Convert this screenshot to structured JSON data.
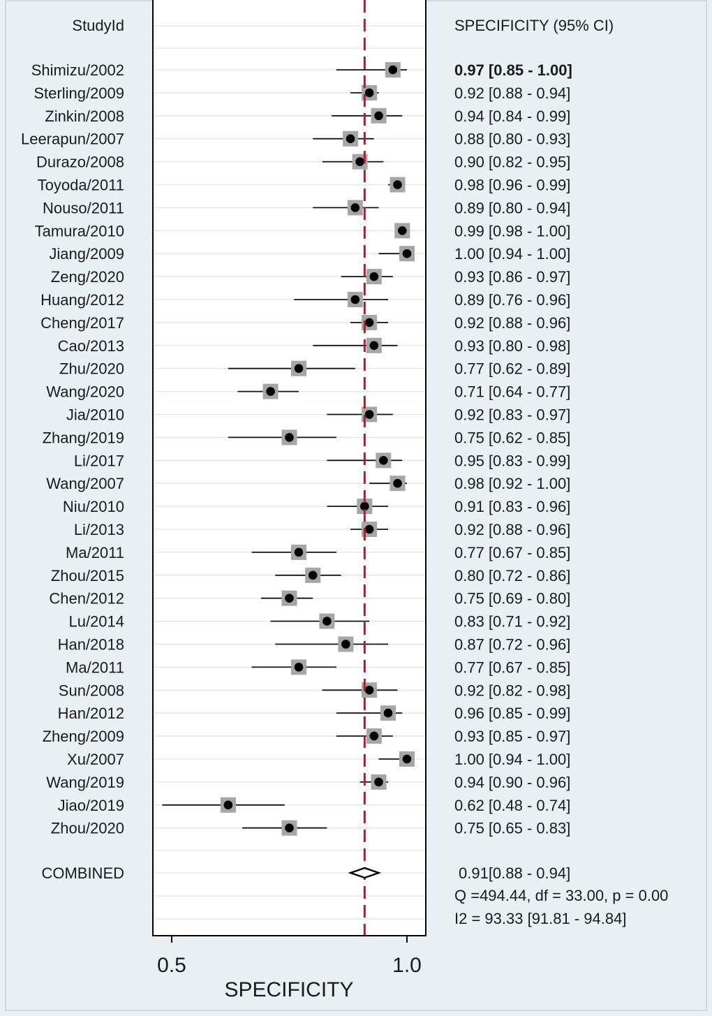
{
  "chart_data": {
    "type": "forest",
    "column_header_left": "StudyId",
    "column_header_right": "SPECIFICITY (95% CI)",
    "xlabel": "SPECIFICITY",
    "x_ticks": [
      "0.5",
      "1.0"
    ],
    "xlim": [
      0.46,
      1.04
    ],
    "pooled_line": 0.91,
    "studies": [
      {
        "name": "Shimizu/2002",
        "est": 0.97,
        "lo": 0.85,
        "hi": 1.0,
        "text": "0.97 [0.85 - 1.00]"
      },
      {
        "name": "Sterling/2009",
        "est": 0.92,
        "lo": 0.88,
        "hi": 0.94,
        "text": "0.92 [0.88 - 0.94]"
      },
      {
        "name": "Zinkin/2008",
        "est": 0.94,
        "lo": 0.84,
        "hi": 0.99,
        "text": "0.94 [0.84 - 0.99]"
      },
      {
        "name": "Leerapun/2007",
        "est": 0.88,
        "lo": 0.8,
        "hi": 0.93,
        "text": "0.88 [0.80 - 0.93]"
      },
      {
        "name": "Durazo/2008",
        "est": 0.9,
        "lo": 0.82,
        "hi": 0.95,
        "text": "0.90 [0.82 - 0.95]"
      },
      {
        "name": "Toyoda/2011",
        "est": 0.98,
        "lo": 0.96,
        "hi": 0.99,
        "text": "0.98 [0.96 - 0.99]"
      },
      {
        "name": "Nouso/2011",
        "est": 0.89,
        "lo": 0.8,
        "hi": 0.94,
        "text": "0.89 [0.80 - 0.94]"
      },
      {
        "name": "Tamura/2010",
        "est": 0.99,
        "lo": 0.98,
        "hi": 1.0,
        "text": "0.99 [0.98 - 1.00]"
      },
      {
        "name": "Jiang/2009",
        "est": 1.0,
        "lo": 0.94,
        "hi": 1.0,
        "text": "1.00 [0.94 - 1.00]"
      },
      {
        "name": "Zeng/2020",
        "est": 0.93,
        "lo": 0.86,
        "hi": 0.97,
        "text": "0.93 [0.86 - 0.97]"
      },
      {
        "name": "Huang/2012",
        "est": 0.89,
        "lo": 0.76,
        "hi": 0.96,
        "text": "0.89 [0.76 - 0.96]"
      },
      {
        "name": "Cheng/2017",
        "est": 0.92,
        "lo": 0.88,
        "hi": 0.96,
        "text": "0.92 [0.88 - 0.96]"
      },
      {
        "name": "Cao/2013",
        "est": 0.93,
        "lo": 0.8,
        "hi": 0.98,
        "text": "0.93 [0.80 - 0.98]"
      },
      {
        "name": "Zhu/2020",
        "est": 0.77,
        "lo": 0.62,
        "hi": 0.89,
        "text": "0.77 [0.62 - 0.89]"
      },
      {
        "name": "Wang/2020",
        "est": 0.71,
        "lo": 0.64,
        "hi": 0.77,
        "text": "0.71 [0.64 - 0.77]"
      },
      {
        "name": "Jia/2010",
        "est": 0.92,
        "lo": 0.83,
        "hi": 0.97,
        "text": "0.92 [0.83 - 0.97]"
      },
      {
        "name": "Zhang/2019",
        "est": 0.75,
        "lo": 0.62,
        "hi": 0.85,
        "text": "0.75 [0.62 - 0.85]"
      },
      {
        "name": "Li/2017",
        "est": 0.95,
        "lo": 0.83,
        "hi": 0.99,
        "text": "0.95 [0.83 - 0.99]"
      },
      {
        "name": "Wang/2007",
        "est": 0.98,
        "lo": 0.92,
        "hi": 1.0,
        "text": "0.98 [0.92 - 1.00]"
      },
      {
        "name": "Niu/2010",
        "est": 0.91,
        "lo": 0.83,
        "hi": 0.96,
        "text": "0.91 [0.83 - 0.96]"
      },
      {
        "name": "Li/2013",
        "est": 0.92,
        "lo": 0.88,
        "hi": 0.96,
        "text": "0.92 [0.88 - 0.96]"
      },
      {
        "name": "Ma/2011",
        "est": 0.77,
        "lo": 0.67,
        "hi": 0.85,
        "text": "0.77 [0.67 - 0.85]"
      },
      {
        "name": "Zhou/2015",
        "est": 0.8,
        "lo": 0.72,
        "hi": 0.86,
        "text": "0.80 [0.72 - 0.86]"
      },
      {
        "name": "Chen/2012",
        "est": 0.75,
        "lo": 0.69,
        "hi": 0.8,
        "text": "0.75 [0.69 - 0.80]"
      },
      {
        "name": "Lu/2014",
        "est": 0.83,
        "lo": 0.71,
        "hi": 0.92,
        "text": "0.83 [0.71 - 0.92]"
      },
      {
        "name": "Han/2018",
        "est": 0.87,
        "lo": 0.72,
        "hi": 0.96,
        "text": "0.87 [0.72 - 0.96]"
      },
      {
        "name": "Ma/2011",
        "est": 0.77,
        "lo": 0.67,
        "hi": 0.85,
        "text": "0.77 [0.67 - 0.85]"
      },
      {
        "name": "Sun/2008",
        "est": 0.92,
        "lo": 0.82,
        "hi": 0.98,
        "text": "0.92 [0.82 - 0.98]"
      },
      {
        "name": "Han/2012",
        "est": 0.96,
        "lo": 0.85,
        "hi": 0.99,
        "text": "0.96 [0.85 - 0.99]"
      },
      {
        "name": "Zheng/2009",
        "est": 0.93,
        "lo": 0.85,
        "hi": 0.97,
        "text": "0.93 [0.85 - 0.97]"
      },
      {
        "name": "Xu/2007",
        "est": 1.0,
        "lo": 0.94,
        "hi": 1.0,
        "text": "1.00 [0.94 - 1.00]"
      },
      {
        "name": "Wang/2019",
        "est": 0.94,
        "lo": 0.9,
        "hi": 0.96,
        "text": "0.94 [0.90 - 0.96]"
      },
      {
        "name": "Jiao/2019",
        "est": 0.62,
        "lo": 0.48,
        "hi": 0.74,
        "text": "0.62 [0.48 - 0.74]"
      },
      {
        "name": "Zhou/2020",
        "est": 0.75,
        "lo": 0.65,
        "hi": 0.83,
        "text": "0.75 [0.65 - 0.83]"
      }
    ],
    "combined": {
      "name": "COMBINED",
      "est": 0.91,
      "lo": 0.88,
      "hi": 0.94,
      "text": "0.91[0.88 - 0.94]",
      "heterogeneity_q": "Q =494.44, df = 33.00, p =  0.00",
      "heterogeneity_i2": "I2 = 93.33 [91.81 - 94.84]"
    },
    "colors": {
      "background": "#e9f0f3",
      "plot_area": "#ffffff",
      "pooled_line": "#c8102e",
      "weight_box": "#a6a6a6",
      "point": "#000000"
    }
  }
}
